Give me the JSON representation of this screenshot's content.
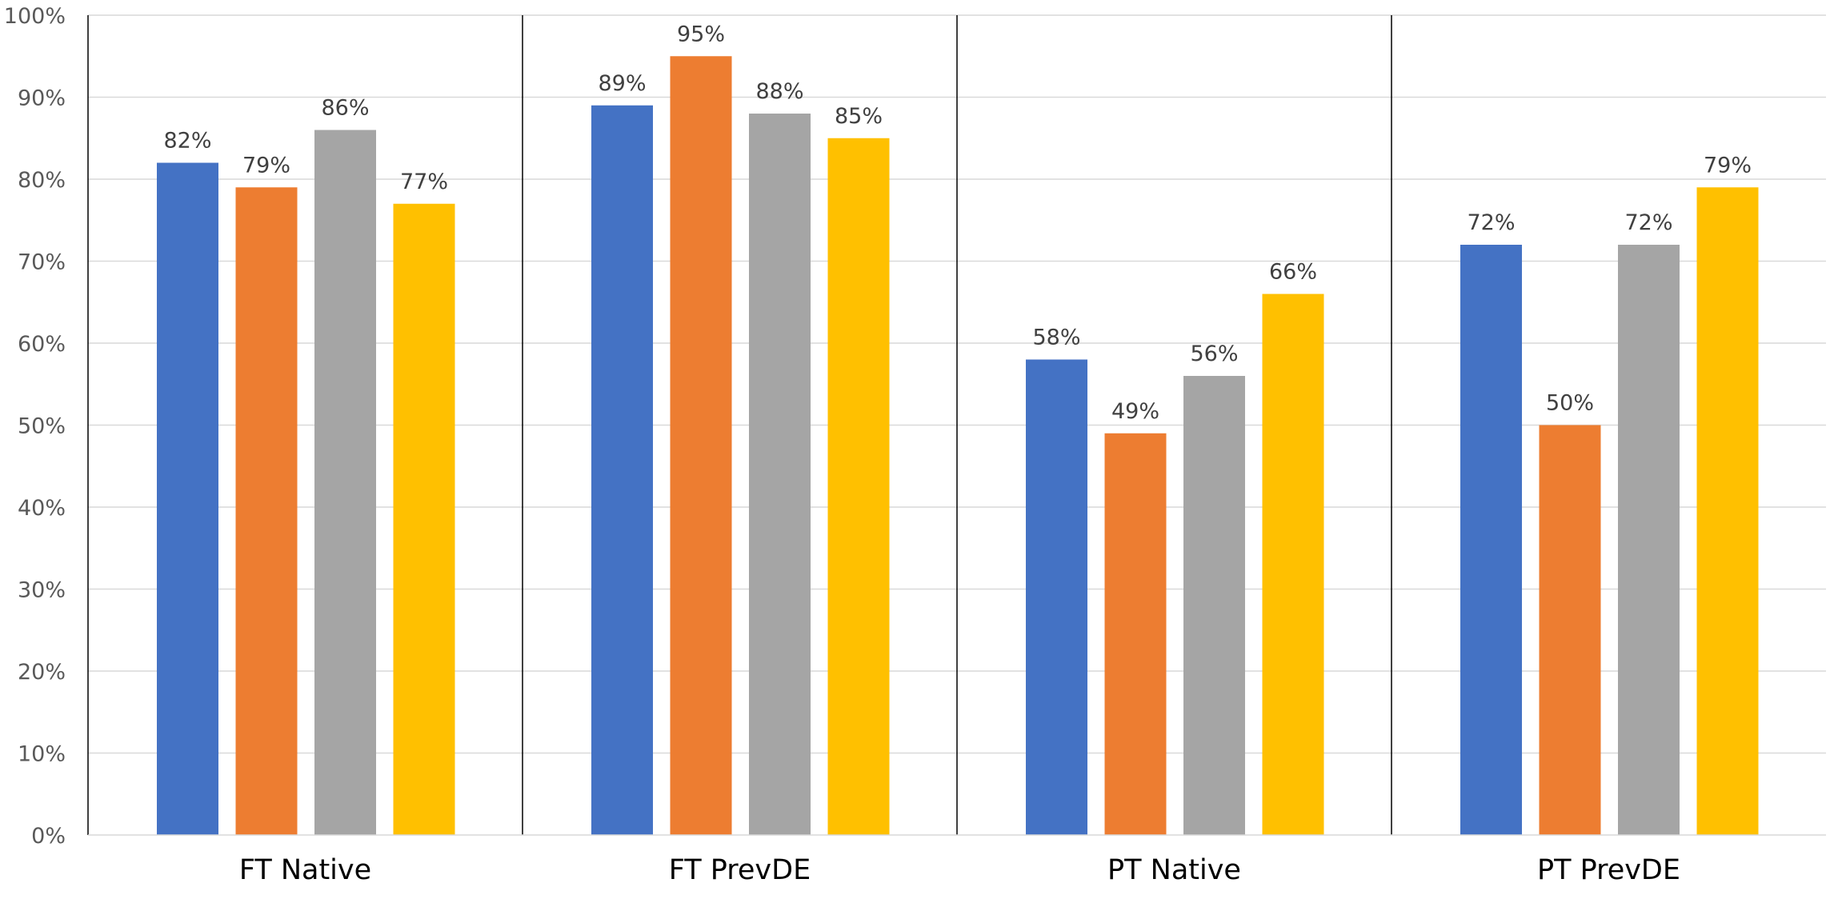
{
  "chart_data": {
    "type": "bar",
    "title": "",
    "xlabel": "",
    "ylabel": "",
    "ylim": [
      0,
      1
    ],
    "grid": true,
    "legend": "none",
    "y_ticks": [
      "0%",
      "10%",
      "20%",
      "30%",
      "40%",
      "50%",
      "60%",
      "70%",
      "80%",
      "90%",
      "100%"
    ],
    "categories": [
      "FT Native",
      "FT PrevDE",
      "PT Native",
      "PT PrevDE"
    ],
    "series": [
      {
        "color": "#4472C4",
        "values": [
          0.82,
          0.89,
          0.58,
          0.72
        ],
        "labels": [
          "82%",
          "89%",
          "58%",
          "72%"
        ]
      },
      {
        "color": "#ED7D31",
        "values": [
          0.79,
          0.95,
          0.49,
          0.5
        ],
        "labels": [
          "79%",
          "95%",
          "49%",
          "50%"
        ]
      },
      {
        "color": "#A5A5A5",
        "values": [
          0.86,
          0.88,
          0.56,
          0.72
        ],
        "labels": [
          "86%",
          "88%",
          "56%",
          "72%"
        ]
      },
      {
        "color": "#FFC000",
        "values": [
          0.77,
          0.85,
          0.66,
          0.79
        ],
        "labels": [
          "77%",
          "85%",
          "66%",
          "79%"
        ]
      }
    ]
  }
}
